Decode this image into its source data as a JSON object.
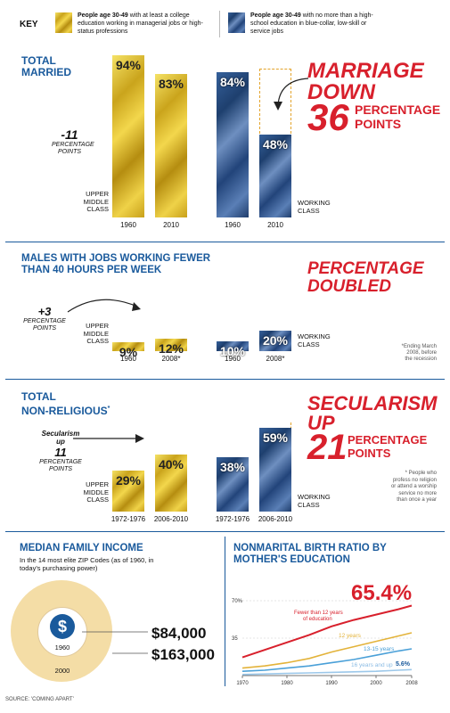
{
  "key": {
    "title": "KEY",
    "upper_desc_bold": "People age 30-49",
    "upper_desc": " with at least a college education working in managerial jobs or high-status professions",
    "lower_desc_bold": "People age 30-49",
    "lower_desc": " with no more than a high-school education in blue-collar, low-skill or service jobs"
  },
  "section1": {
    "title_line1": "TOTAL",
    "title_line2": "MARRIED",
    "change_value": "-11",
    "change_unit_line1": "PERCENTAGE",
    "change_unit_line2": "POINTS",
    "upper_class_label_1": "UPPER",
    "upper_class_label_2": "MIDDLE",
    "upper_class_label_3": "CLASS",
    "working_class_label_1": "WORKING",
    "working_class_label_2": "CLASS",
    "headline_line1": "MARRIAGE",
    "headline_line2": "DOWN",
    "headline_num": "36",
    "headline_unit_1": "PERCENTAGE",
    "headline_unit_2": "POINTS"
  },
  "section2": {
    "title_line1": "MALES WITH JOBS WORKING FEWER",
    "title_line2": "THAN 40 HOURS PER WEEK",
    "change_value": "+3",
    "change_unit_line1": "PERCENTAGE",
    "change_unit_line2": "POINTS",
    "upper_class_label_1": "UPPER",
    "upper_class_label_2": "MIDDLE",
    "upper_class_label_3": "CLASS",
    "working_class_label_1": "WORKING",
    "working_class_label_2": "CLASS",
    "headline_line1": "PERCENTAGE",
    "headline_line2": "DOUBLED",
    "footnote_line1": "*Ending March",
    "footnote_line2": "2008, before",
    "footnote_line3": "the recession"
  },
  "section3": {
    "title_line1": "TOTAL",
    "title_line2": "NON-RELIGIOUS",
    "title_mark": "*",
    "change_line1": "Secularism",
    "change_line2": "up",
    "change_value": "11",
    "change_unit_line1": "PERCENTAGE",
    "change_unit_line2": "POINTS",
    "upper_class_label_1": "UPPER",
    "upper_class_label_2": "MIDDLE",
    "upper_class_label_3": "CLASS",
    "working_class_label_1": "WORKING",
    "working_class_label_2": "CLASS",
    "headline_line1": "SECULARISM",
    "headline_line2": "UP",
    "headline_num": "21",
    "headline_unit_1": "PERCENTAGE",
    "headline_unit_2": "POINTS",
    "footnote_line1": "* People who",
    "footnote_line2": "profess no religion",
    "footnote_line3": "or attend a worship",
    "footnote_line4": "service no more",
    "footnote_line5": "than once a year"
  },
  "income": {
    "title": "MEDIAN FAMILY INCOME",
    "subtitle_line1": "In the 14 most elite ZIP Codes (as of 1960, in",
    "subtitle_line2": "today's purchasing power)",
    "symbol": "$",
    "year_inner": "1960",
    "year_outer": "2000",
    "value_1960": "$84,000",
    "value_2000": "$163,000"
  },
  "birth": {
    "title_line1": "NONMARITAL BIRTH RATIO BY",
    "title_line2": "MOTHER'S EDUCATION",
    "big_value": "65.4%"
  },
  "source": "SOURCE: 'COMING APART'",
  "colors": {
    "gold": "#e0c030",
    "denim": "#2e5288",
    "accent_red": "#d8202c",
    "head_blue": "#1a5a9c"
  },
  "chart_data": [
    {
      "type": "bar",
      "name": "TOTAL MARRIED",
      "categories": [
        "1960",
        "2010"
      ],
      "series": [
        {
          "name": "UPPER MIDDLE CLASS",
          "values": [
            94,
            83
          ],
          "labels": [
            "94%",
            "83%"
          ]
        },
        {
          "name": "WORKING CLASS",
          "values": [
            84,
            48
          ],
          "labels": [
            "84%",
            "48%"
          ]
        }
      ],
      "ylim": [
        0,
        100
      ]
    },
    {
      "type": "bar",
      "name": "MALES WITH JOBS WORKING FEWER THAN 40 HOURS PER WEEK",
      "categories": [
        "1960",
        "2008*"
      ],
      "series": [
        {
          "name": "UPPER MIDDLE CLASS",
          "values": [
            9,
            12
          ],
          "labels": [
            "9%",
            "12%"
          ]
        },
        {
          "name": "WORKING CLASS",
          "values": [
            10,
            20
          ],
          "labels": [
            "10%",
            "20%"
          ]
        }
      ],
      "ylim": [
        0,
        100
      ]
    },
    {
      "type": "bar",
      "name": "TOTAL NON-RELIGIOUS",
      "categories": [
        "1972-1976",
        "2006-2010"
      ],
      "series": [
        {
          "name": "UPPER MIDDLE CLASS",
          "values": [
            29,
            40
          ],
          "labels": [
            "29%",
            "40%"
          ]
        },
        {
          "name": "WORKING CLASS",
          "values": [
            38,
            59
          ],
          "labels": [
            "38%",
            "59%"
          ]
        }
      ],
      "ylim": [
        0,
        100
      ]
    },
    {
      "type": "line",
      "name": "NONMARITAL BIRTH RATIO BY MOTHER'S EDUCATION",
      "x": [
        1970,
        1975,
        1980,
        1985,
        1990,
        1995,
        2000,
        2005,
        2008
      ],
      "x_ticks": [
        "1970",
        "1980",
        "1990",
        "2000",
        "2008"
      ],
      "y_ticks": [
        "70%",
        "35",
        "0"
      ],
      "ylim": [
        0,
        70
      ],
      "series": [
        {
          "name": "Fewer than 12 years of education",
          "color": "#d8202c",
          "values": [
            17,
            24,
            31,
            38,
            46,
            52,
            57,
            62,
            65.4
          ]
        },
        {
          "name": "12 years",
          "color": "#e3b33a",
          "values": [
            7,
            9,
            12,
            16,
            22,
            27,
            32,
            37,
            40
          ]
        },
        {
          "name": "13-15 years",
          "color": "#4aa0d8",
          "values": [
            4,
            5,
            7,
            9,
            12,
            15,
            19,
            23,
            25
          ]
        },
        {
          "name": "16 years and up",
          "color": "#9cc8ea",
          "values": [
            1,
            1.5,
            2,
            2.5,
            3,
            3.5,
            4,
            5,
            5.6
          ]
        }
      ],
      "series_labels": [
        "Fewer than 12 years",
        "of education",
        "12 years",
        "13-15 years",
        "16 years and up",
        "5.6%"
      ]
    }
  ]
}
